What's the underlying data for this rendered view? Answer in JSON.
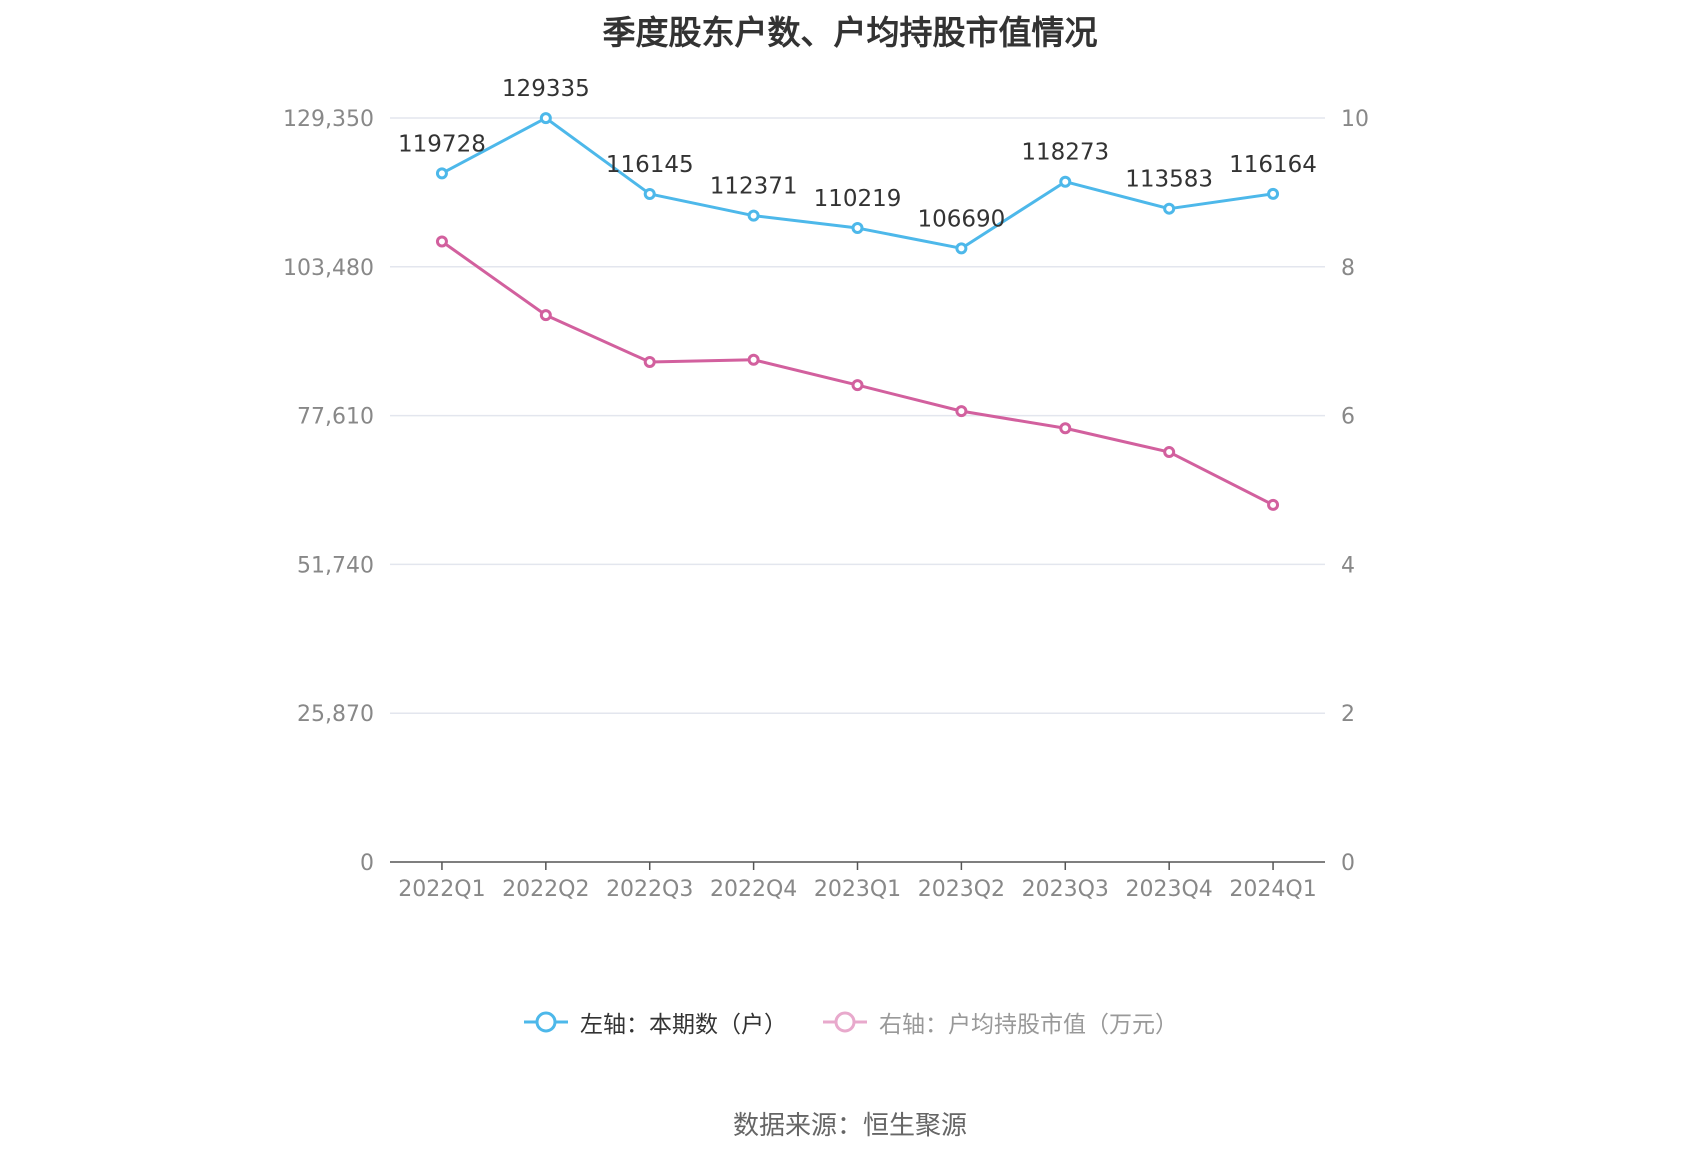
{
  "chart_data": {
    "type": "line",
    "title": "季度股东户数、户均持股市值情况",
    "categories": [
      "2022Q1",
      "2022Q2",
      "2022Q3",
      "2022Q4",
      "2023Q1",
      "2023Q2",
      "2023Q3",
      "2023Q4",
      "2024Q1"
    ],
    "left_axis": {
      "ticks": [
        "0",
        "25,870",
        "51,740",
        "77,610",
        "103,480",
        "129,350"
      ],
      "ylim": [
        0,
        129350
      ]
    },
    "right_axis": {
      "ticks": [
        "0",
        "2",
        "4",
        "6",
        "8",
        "10"
      ],
      "ylim": [
        0,
        10
      ]
    },
    "series": [
      {
        "name": "左轴：本期数（户）",
        "axis": "left",
        "color": "#4db8ea",
        "values": [
          119728,
          129335,
          116145,
          112371,
          110219,
          106690,
          118273,
          113583,
          116164
        ],
        "labels": [
          "119728",
          "129335",
          "116145",
          "112371",
          "110219",
          "106690",
          "118273",
          "113583",
          "116164"
        ]
      },
      {
        "name": "右轴：户均持股市值（万元）",
        "axis": "right",
        "color": "#d2609e",
        "values": [
          8.34,
          7.35,
          6.72,
          6.75,
          6.41,
          6.06,
          5.83,
          5.51,
          4.8
        ]
      }
    ],
    "grid": true,
    "legend_position": "bottom"
  },
  "legend": {
    "items": [
      {
        "label": "左轴：本期数（户）",
        "color": "#4db8ea",
        "active": true
      },
      {
        "label": "右轴：户均持股市值（万元）",
        "color": "#e8a9cc",
        "active": false
      }
    ]
  },
  "source": "数据来源：恒生聚源"
}
